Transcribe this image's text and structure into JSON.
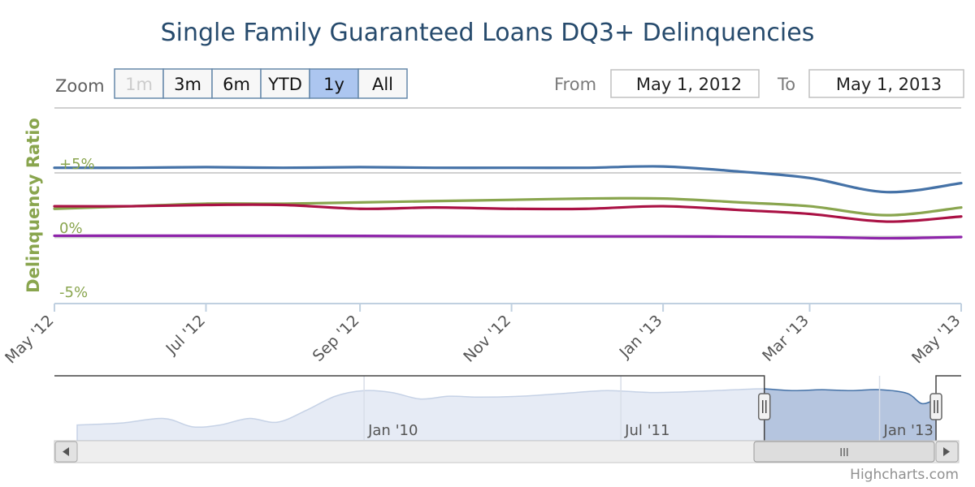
{
  "chart_data": {
    "type": "line",
    "title": "Single Family Guaranteed Loans DQ3+ Delinquencies",
    "ylabel": "Delinquency Ratio",
    "ylim": [
      -5,
      5
    ],
    "y_ticks": [
      {
        "value": 5,
        "label": "+5%"
      },
      {
        "value": 0,
        "label": "0%"
      },
      {
        "value": -5,
        "label": "-5%"
      }
    ],
    "xlim": [
      "2012-05-01",
      "2013-05-01"
    ],
    "x_ticks": [
      {
        "date": "2012-05-01",
        "label": "May '12"
      },
      {
        "date": "2012-07-01",
        "label": "Jul '12"
      },
      {
        "date": "2012-09-01",
        "label": "Sep '12"
      },
      {
        "date": "2012-11-01",
        "label": "Nov '12"
      },
      {
        "date": "2013-01-01",
        "label": "Jan '13"
      },
      {
        "date": "2013-03-01",
        "label": "Mar '13"
      },
      {
        "date": "2013-05-01",
        "label": "May '13"
      }
    ],
    "grid": true,
    "series": [
      {
        "color": "#4572A7",
        "points": [
          [
            "2012-05-01",
            5.4
          ],
          [
            "2012-06-01",
            5.4
          ],
          [
            "2012-07-01",
            5.45
          ],
          [
            "2012-08-01",
            5.4
          ],
          [
            "2012-09-01",
            5.45
          ],
          [
            "2012-10-01",
            5.4
          ],
          [
            "2012-11-01",
            5.4
          ],
          [
            "2012-12-01",
            5.4
          ],
          [
            "2013-01-01",
            5.5
          ],
          [
            "2013-02-01",
            5.1
          ],
          [
            "2013-03-01",
            4.6
          ],
          [
            "2013-04-01",
            3.5
          ],
          [
            "2013-05-01",
            4.2
          ]
        ]
      },
      {
        "color": "#89A54E",
        "points": [
          [
            "2012-05-01",
            2.2
          ],
          [
            "2012-06-01",
            2.4
          ],
          [
            "2012-07-01",
            2.6
          ],
          [
            "2012-08-01",
            2.6
          ],
          [
            "2012-09-01",
            2.7
          ],
          [
            "2012-10-01",
            2.8
          ],
          [
            "2012-11-01",
            2.9
          ],
          [
            "2012-12-01",
            3.0
          ],
          [
            "2013-01-01",
            3.0
          ],
          [
            "2013-02-01",
            2.7
          ],
          [
            "2013-03-01",
            2.4
          ],
          [
            "2013-04-01",
            1.7
          ],
          [
            "2013-05-01",
            2.3
          ]
        ]
      },
      {
        "color": "#AA1144",
        "points": [
          [
            "2012-05-01",
            2.4
          ],
          [
            "2012-06-01",
            2.4
          ],
          [
            "2012-07-01",
            2.5
          ],
          [
            "2012-08-01",
            2.5
          ],
          [
            "2012-09-01",
            2.2
          ],
          [
            "2012-10-01",
            2.3
          ],
          [
            "2012-11-01",
            2.2
          ],
          [
            "2012-12-01",
            2.2
          ],
          [
            "2013-01-01",
            2.4
          ],
          [
            "2013-02-01",
            2.1
          ],
          [
            "2013-03-01",
            1.8
          ],
          [
            "2013-04-01",
            1.2
          ],
          [
            "2013-05-01",
            1.6
          ]
        ]
      },
      {
        "color": "#8E24AA",
        "points": [
          [
            "2012-05-01",
            0.1
          ],
          [
            "2012-08-01",
            0.1
          ],
          [
            "2012-11-01",
            0.05
          ],
          [
            "2013-01-01",
            0.05
          ],
          [
            "2013-03-01",
            0.0
          ],
          [
            "2013-04-01",
            -0.1
          ],
          [
            "2013-05-01",
            0.0
          ]
        ]
      }
    ]
  },
  "range_selector": {
    "zoom_label": "Zoom",
    "buttons": [
      "1m",
      "3m",
      "6m",
      "YTD",
      "1y",
      "All"
    ],
    "active": "1y",
    "disabled": [
      "1m"
    ],
    "from_label": "From",
    "from_value": "May 1, 2012",
    "to_label": "To",
    "to_value": "May 1, 2013"
  },
  "navigator": {
    "labels": [
      "Jan '10",
      "Jul '11",
      "Jan '13"
    ],
    "selected_range": [
      "2012-05-01",
      "2013-05-01"
    ],
    "series_color": "#4572A7",
    "area_color": "#E6EBF5",
    "selected_fill": "#B2C3DD"
  },
  "scrollbar": {
    "grip": "III"
  },
  "credits": "Highcharts.com",
  "colors": {
    "title": "#274B6D",
    "axis_title": "#89A54E",
    "tick_label": "#606060",
    "active_button": "#ACC6F0"
  }
}
